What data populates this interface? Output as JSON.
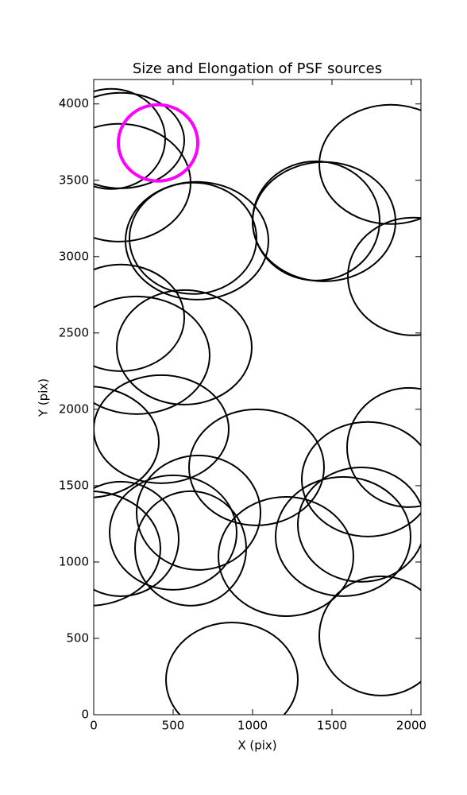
{
  "chart_data": {
    "type": "ellipse",
    "title": "Size and Elongation of PSF sources",
    "x_label": "X (pix)",
    "y_label": "Y (pix)",
    "xlim": [
      0,
      2060
    ],
    "ylim": [
      0,
      4160
    ],
    "xticks": [
      0,
      500,
      1000,
      1500,
      2000
    ],
    "yticks": [
      0,
      500,
      1000,
      1500,
      2000,
      2500,
      3000,
      3500,
      4000
    ],
    "grid": false,
    "series": [
      {
        "color": "#000000",
        "line_width": 2,
        "x": [
          110,
          170,
          160,
          625,
          650,
          1400,
          1450,
          1870,
          2010,
          170,
          270,
          570,
          -40,
          425,
          1025,
          1985,
          1725,
          660,
          500,
          610,
          170,
          -30,
          1210,
          1570,
          1685,
          1810,
          870
        ],
        "y": [
          3771,
          3760,
          3484,
          3120,
          3104,
          3234,
          3229,
          3604,
          2870,
          2599,
          2354,
          2406,
          1786,
          1870,
          1620,
          1750,
          1542,
          1323,
          1193,
          1089,
          1151,
          1089,
          1036,
          1167,
          1245,
          516,
          229
        ],
        "widths": [
          680,
          800,
          900,
          800,
          900,
          800,
          900,
          900,
          820,
          800,
          920,
          850,
          900,
          850,
          850,
          780,
          830,
          780,
          800,
          700,
          730,
          900,
          850,
          850,
          800,
          780,
          830
        ],
        "heights": [
          656,
          625,
          771,
          729,
          771,
          781,
          781,
          781,
          771,
          698,
          771,
          750,
          729,
          708,
          760,
          781,
          750,
          750,
          750,
          750,
          750,
          750,
          781,
          781,
          750,
          781,
          750
        ]
      },
      {
        "color": "#ff00ff",
        "line_width": 4,
        "x": [
          405
        ],
        "y": [
          3745
        ],
        "widths": [
          500
        ],
        "heights": [
          500
        ]
      }
    ]
  }
}
